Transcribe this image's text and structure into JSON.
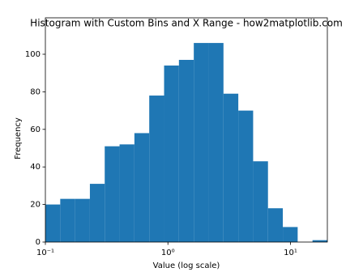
{
  "chart_data": {
    "type": "histogram",
    "title": "Histogram with Custom Bins and X Range - how2matplotlib.com",
    "xlabel": "Value (log scale)",
    "ylabel": "Frequency",
    "color": "#1f77b4",
    "xscale": "log",
    "bins": [
      0.1,
      0.1322,
      0.1747,
      0.2308,
      0.305,
      0.4031,
      0.5328,
      0.7041,
      0.9307,
      1.23,
      1.626,
      2.148,
      2.84,
      3.753,
      4.96,
      6.555,
      8.663,
      11.45,
      15.13,
      20
    ],
    "values": [
      20,
      23,
      23,
      31,
      51,
      52,
      58,
      78,
      94,
      97,
      106,
      106,
      79,
      70,
      43,
      18,
      8,
      0,
      1
    ],
    "xlim": [
      0.1,
      20
    ],
    "ylim": [
      0,
      119.4
    ],
    "xticks": [
      {
        "value": 0.1,
        "label": "10⁻¹"
      },
      {
        "value": 1,
        "label": "10⁰"
      },
      {
        "value": 10,
        "label": "10¹"
      }
    ],
    "yticks": [
      0,
      20,
      40,
      60,
      80,
      100
    ]
  }
}
